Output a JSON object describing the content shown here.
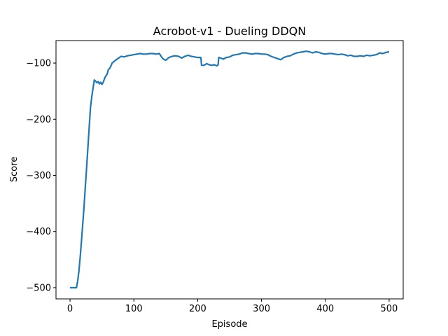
{
  "chart_data": {
    "type": "line",
    "title": "Acrobot-v1 - Dueling DDQN",
    "xlabel": "Episode",
    "ylabel": "Score",
    "xlim": [
      -22,
      522
    ],
    "ylim": [
      -520,
      -60
    ],
    "xticks": [
      0,
      100,
      200,
      300,
      400,
      500
    ],
    "yticks": [
      -500,
      -400,
      -300,
      -200,
      -100
    ],
    "xtick_labels": [
      "0",
      "100",
      "200",
      "300",
      "400",
      "500"
    ],
    "ytick_labels": [
      "−500",
      "−400",
      "−300",
      "−200",
      "−100"
    ],
    "grid": false,
    "legend": null,
    "series": [
      {
        "color": "#1f77b4",
        "x": [
          0,
          5,
          10,
          12,
          14,
          16,
          18,
          20,
          22,
          24,
          26,
          28,
          30,
          32,
          34,
          36,
          38,
          40,
          42,
          44,
          46,
          48,
          50,
          52,
          55,
          58,
          60,
          63,
          66,
          70,
          75,
          80,
          85,
          90,
          95,
          100,
          105,
          110,
          115,
          120,
          125,
          130,
          135,
          140,
          145,
          150,
          155,
          160,
          165,
          170,
          175,
          180,
          185,
          190,
          195,
          200,
          205,
          206,
          210,
          214,
          218,
          222,
          226,
          230,
          232,
          233,
          236,
          240,
          245,
          250,
          255,
          260,
          265,
          270,
          275,
          280,
          285,
          290,
          295,
          300,
          305,
          310,
          315,
          320,
          325,
          330,
          335,
          340,
          345,
          350,
          355,
          360,
          365,
          370,
          375,
          380,
          385,
          390,
          395,
          400,
          405,
          410,
          415,
          420,
          425,
          430,
          435,
          440,
          445,
          450,
          455,
          460,
          465,
          470,
          475,
          480,
          485,
          490,
          495,
          500
        ],
        "y": [
          -500,
          -500,
          -500,
          -488,
          -470,
          -445,
          -415,
          -385,
          -355,
          -320,
          -285,
          -250,
          -215,
          -180,
          -160,
          -145,
          -130,
          -132,
          -135,
          -133,
          -137,
          -134,
          -138,
          -134,
          -125,
          -120,
          -112,
          -108,
          -100,
          -96,
          -92,
          -88,
          -89,
          -87,
          -86,
          -85,
          -84,
          -83,
          -84,
          -84,
          -83,
          -83,
          -84,
          -83,
          -92,
          -95,
          -90,
          -88,
          -87,
          -88,
          -91,
          -88,
          -86,
          -88,
          -89,
          -90,
          -90,
          -104,
          -104,
          -101,
          -103,
          -104,
          -103,
          -105,
          -103,
          -90,
          -91,
          -93,
          -90,
          -89,
          -86,
          -85,
          -84,
          -82,
          -82,
          -83,
          -84,
          -83,
          -83,
          -84,
          -84,
          -85,
          -88,
          -90,
          -92,
          -94,
          -90,
          -88,
          -87,
          -84,
          -82,
          -81,
          -80,
          -79,
          -80,
          -82,
          -80,
          -81,
          -83,
          -84,
          -83,
          -83,
          -84,
          -85,
          -84,
          -85,
          -87,
          -86,
          -88,
          -88,
          -87,
          -88,
          -86,
          -87,
          -86,
          -85,
          -82,
          -83,
          -81,
          -80
        ]
      }
    ]
  }
}
